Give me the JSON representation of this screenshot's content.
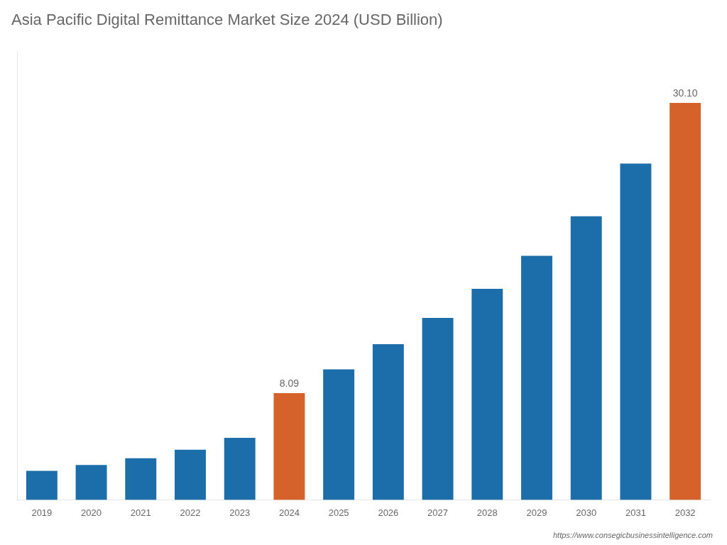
{
  "chart_data": {
    "type": "bar",
    "title": "Asia Pacific Digital Remittance Market Size 2024 (USD Billion)",
    "categories": [
      "2019",
      "2020",
      "2021",
      "2022",
      "2023",
      "2024",
      "2025",
      "2026",
      "2027",
      "2028",
      "2029",
      "2030",
      "2031",
      "2032"
    ],
    "values": [
      2.2,
      2.65,
      3.15,
      3.8,
      4.7,
      8.09,
      9.9,
      11.8,
      13.8,
      16.0,
      18.5,
      21.5,
      25.5,
      30.1
    ],
    "value_labels": [
      null,
      null,
      null,
      null,
      null,
      "8.09",
      null,
      null,
      null,
      null,
      null,
      null,
      null,
      "30.10"
    ],
    "colors": [
      "#1b6eaa",
      "#1b6eaa",
      "#1b6eaa",
      "#1b6eaa",
      "#1b6eaa",
      "#d4622a",
      "#1b6eaa",
      "#1b6eaa",
      "#1b6eaa",
      "#1b6eaa",
      "#1b6eaa",
      "#1b6eaa",
      "#1b6eaa",
      "#d4622a"
    ],
    "ylim": [
      0,
      34
    ],
    "grid": false,
    "tick_labels": "x",
    "annotations": [
      "https://www.consegicbusinessintelligence.com"
    ]
  }
}
